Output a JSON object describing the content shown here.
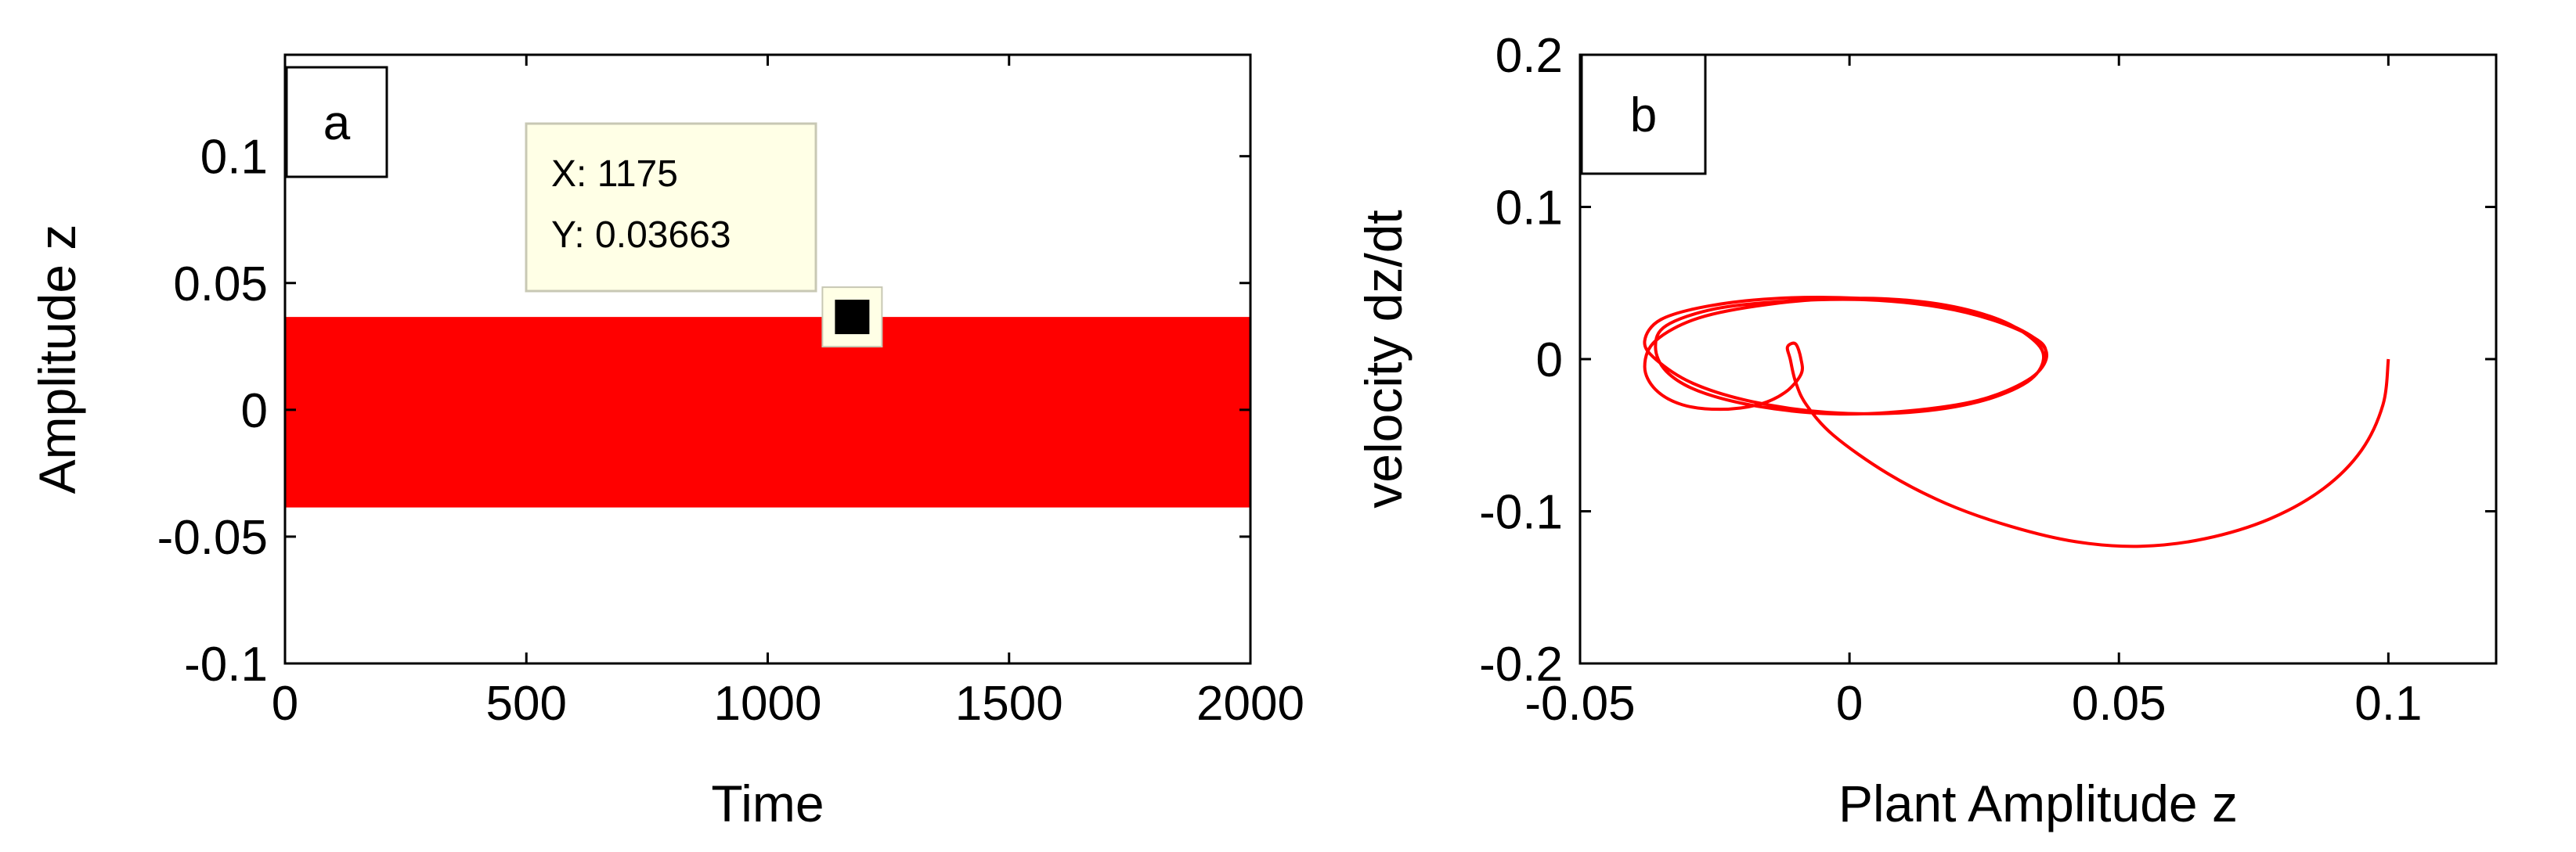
{
  "chart_data": [
    {
      "type": "area",
      "panel_label": "a",
      "xlabel": "Time",
      "ylabel": "Amplitude z",
      "xlim": [
        0,
        2000
      ],
      "ylim": [
        -0.1,
        0.14
      ],
      "xticks": [
        0,
        500,
        1000,
        1500,
        2000
      ],
      "xtick_labels": [
        "0",
        "500",
        "1000",
        "1500",
        "2000"
      ],
      "yticks": [
        -0.1,
        -0.05,
        0,
        0.05,
        0.1
      ],
      "ytick_labels": [
        "-0.1",
        "-0.05",
        "0",
        "0.05",
        "0.1"
      ],
      "series": [
        {
          "color": "#ff0000",
          "x": [
            0,
            2000
          ],
          "upper": [
            0.03663,
            0.03663
          ],
          "lower": [
            -0.0385,
            -0.0385
          ]
        }
      ],
      "datatip": {
        "x": 1175,
        "y": 0.03663,
        "x_text": "X: 1175",
        "y_text": "Y: 0.03663"
      }
    },
    {
      "type": "line",
      "panel_label": "b",
      "xlabel": "Plant Amplitude z",
      "ylabel": "velocity dz/dt",
      "xlim": [
        -0.05,
        0.12
      ],
      "ylim": [
        -0.2,
        0.2
      ],
      "xticks": [
        -0.05,
        0,
        0.05,
        0.1
      ],
      "xtick_labels": [
        "-0.05",
        "0",
        "0.05",
        "0.1"
      ],
      "yticks": [
        -0.2,
        -0.1,
        0,
        0.1,
        0.2
      ],
      "ytick_labels": [
        "-0.2",
        "-0.1",
        "0",
        "0.1",
        "0.2"
      ],
      "series": [
        {
          "color": "#ff0000",
          "x": [
            0.1,
            0.099,
            0.095,
            0.088,
            0.078,
            0.066,
            0.054,
            0.042,
            0.03,
            0.018,
            0.007,
            -0.003,
            -0.008,
            -0.01,
            -0.011,
            -0.0115,
            -0.01,
            -0.009,
            -0.009,
            -0.012,
            -0.017,
            -0.024,
            -0.031,
            -0.036,
            -0.038,
            -0.036,
            -0.028,
            -0.015,
            0.0,
            0.015,
            0.027,
            0.034,
            0.036,
            0.033,
            0.024,
            0.011,
            -0.004,
            -0.018,
            -0.029,
            -0.036,
            -0.038,
            -0.035,
            -0.026,
            -0.013,
            0.002,
            0.017,
            0.028,
            0.035,
            0.0365,
            0.033,
            0.024,
            0.011,
            -0.003,
            -0.017,
            -0.028,
            -0.034,
            -0.036,
            -0.034,
            -0.025,
            -0.012,
            0.003,
            0.017,
            0.028,
            0.0355,
            0.0365
          ],
          "y": [
            0.0,
            -0.03,
            -0.06,
            -0.085,
            -0.105,
            -0.118,
            -0.123,
            -0.12,
            -0.11,
            -0.095,
            -0.075,
            -0.05,
            -0.03,
            -0.015,
            0.0,
            0.008,
            0.01,
            0.0,
            -0.01,
            -0.022,
            -0.03,
            -0.033,
            -0.03,
            -0.02,
            -0.005,
            0.012,
            0.027,
            0.036,
            0.04,
            0.037,
            0.027,
            0.013,
            0.0,
            -0.015,
            -0.028,
            -0.035,
            -0.035,
            -0.028,
            -0.016,
            0.0,
            0.012,
            0.026,
            0.035,
            0.04,
            0.04,
            0.035,
            0.025,
            0.012,
            0.0,
            -0.014,
            -0.027,
            -0.034,
            -0.036,
            -0.031,
            -0.021,
            -0.008,
            0.008,
            0.022,
            0.033,
            0.038,
            0.039,
            0.034,
            0.024,
            0.011,
            0.0
          ]
        }
      ]
    }
  ]
}
